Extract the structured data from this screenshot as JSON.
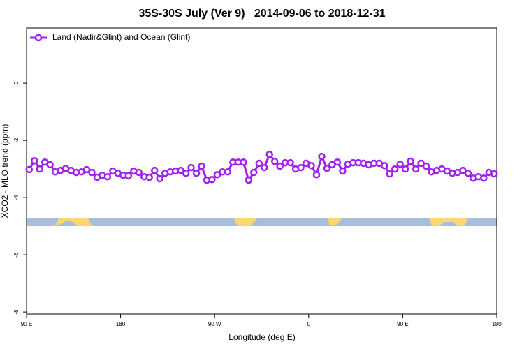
{
  "chart_data": {
    "type": "line",
    "title": "35S-30S July (Ver 9)   2014-09-06 to 2018-12-31",
    "x_label": "Longitude (deg E)",
    "y_label": "XCO2 - MLO trend (ppm)",
    "x": [
      92.5,
      97.5,
      102.5,
      107.5,
      112.5,
      117.5,
      122.5,
      127.5,
      132.5,
      137.5,
      142.5,
      147.5,
      152.5,
      157.5,
      162.5,
      167.5,
      172.5,
      177.5,
      182.5,
      187.5,
      192.5,
      197.5,
      202.5,
      207.5,
      212.5,
      217.5,
      222.5,
      227.5,
      232.5,
      237.5,
      242.5,
      247.5,
      252.5,
      257.5,
      262.5,
      267.5,
      272.5,
      277.5,
      282.5,
      287.5,
      292.5,
      297.5,
      302.5,
      307.5,
      312.5,
      317.5,
      322.5,
      327.5,
      332.5,
      337.5,
      342.5,
      347.5,
      352.5,
      357.5,
      362.5,
      367.5,
      372.5,
      377.5,
      382.5,
      387.5,
      392.5,
      397.5,
      402.5,
      407.5,
      412.5,
      417.5,
      422.5,
      427.5,
      432.5,
      437.5,
      442.5,
      447.5,
      452.5,
      457.5,
      462.5,
      467.5,
      472.5,
      477.5,
      482.5,
      487.5,
      492.5,
      497.5,
      502.5,
      507.5,
      512.5,
      517.5,
      522.5,
      527.5,
      532.5,
      537.5
    ],
    "series": [
      {
        "name": "Land (Nadir&Glint) and Ocean (Glint)",
        "color": "#a020f0",
        "values": [
          -3.02,
          -2.71,
          -3.0,
          -2.76,
          -2.85,
          -3.1,
          -3.05,
          -2.98,
          -3.05,
          -3.12,
          -3.1,
          -3.02,
          -3.12,
          -3.29,
          -3.22,
          -3.27,
          -3.07,
          -3.15,
          -3.22,
          -3.24,
          -3.07,
          -3.12,
          -3.27,
          -3.29,
          -3.05,
          -3.34,
          -3.15,
          -3.1,
          -3.07,
          -3.05,
          -3.15,
          -2.95,
          -3.15,
          -2.9,
          -3.39,
          -3.37,
          -3.2,
          -3.1,
          -3.1,
          -2.76,
          -2.76,
          -2.76,
          -3.39,
          -3.12,
          -2.8,
          -2.95,
          -2.49,
          -2.73,
          -2.9,
          -2.78,
          -2.78,
          -3.0,
          -2.95,
          -2.8,
          -2.88,
          -3.2,
          -2.56,
          -2.98,
          -2.85,
          -2.76,
          -3.07,
          -2.83,
          -2.78,
          -2.78,
          -2.8,
          -2.85,
          -2.8,
          -2.8,
          -2.88,
          -3.17,
          -3.0,
          -2.83,
          -3.0,
          -2.73,
          -3.0,
          -2.8,
          -2.9,
          -3.1,
          -3.05,
          -3.0,
          -3.07,
          -3.15,
          -3.12,
          -3.05,
          -3.15,
          -3.32,
          -3.27,
          -3.32,
          -3.12,
          -3.17
        ]
      }
    ],
    "xlim": [
      90,
      540
    ],
    "xticks": [
      {
        "value": 90,
        "label": "90 E"
      },
      {
        "value": 180,
        "label": "180"
      },
      {
        "value": 270,
        "label": "90 W"
      },
      {
        "value": 360,
        "label": "0"
      },
      {
        "value": 450,
        "label": "90 E"
      },
      {
        "value": 540,
        "label": "180"
      }
    ],
    "ylim": [
      -8.07,
      1.93
    ],
    "yticks": [
      0,
      -2,
      -4,
      -6,
      -8
    ],
    "legend": "top-left"
  }
}
